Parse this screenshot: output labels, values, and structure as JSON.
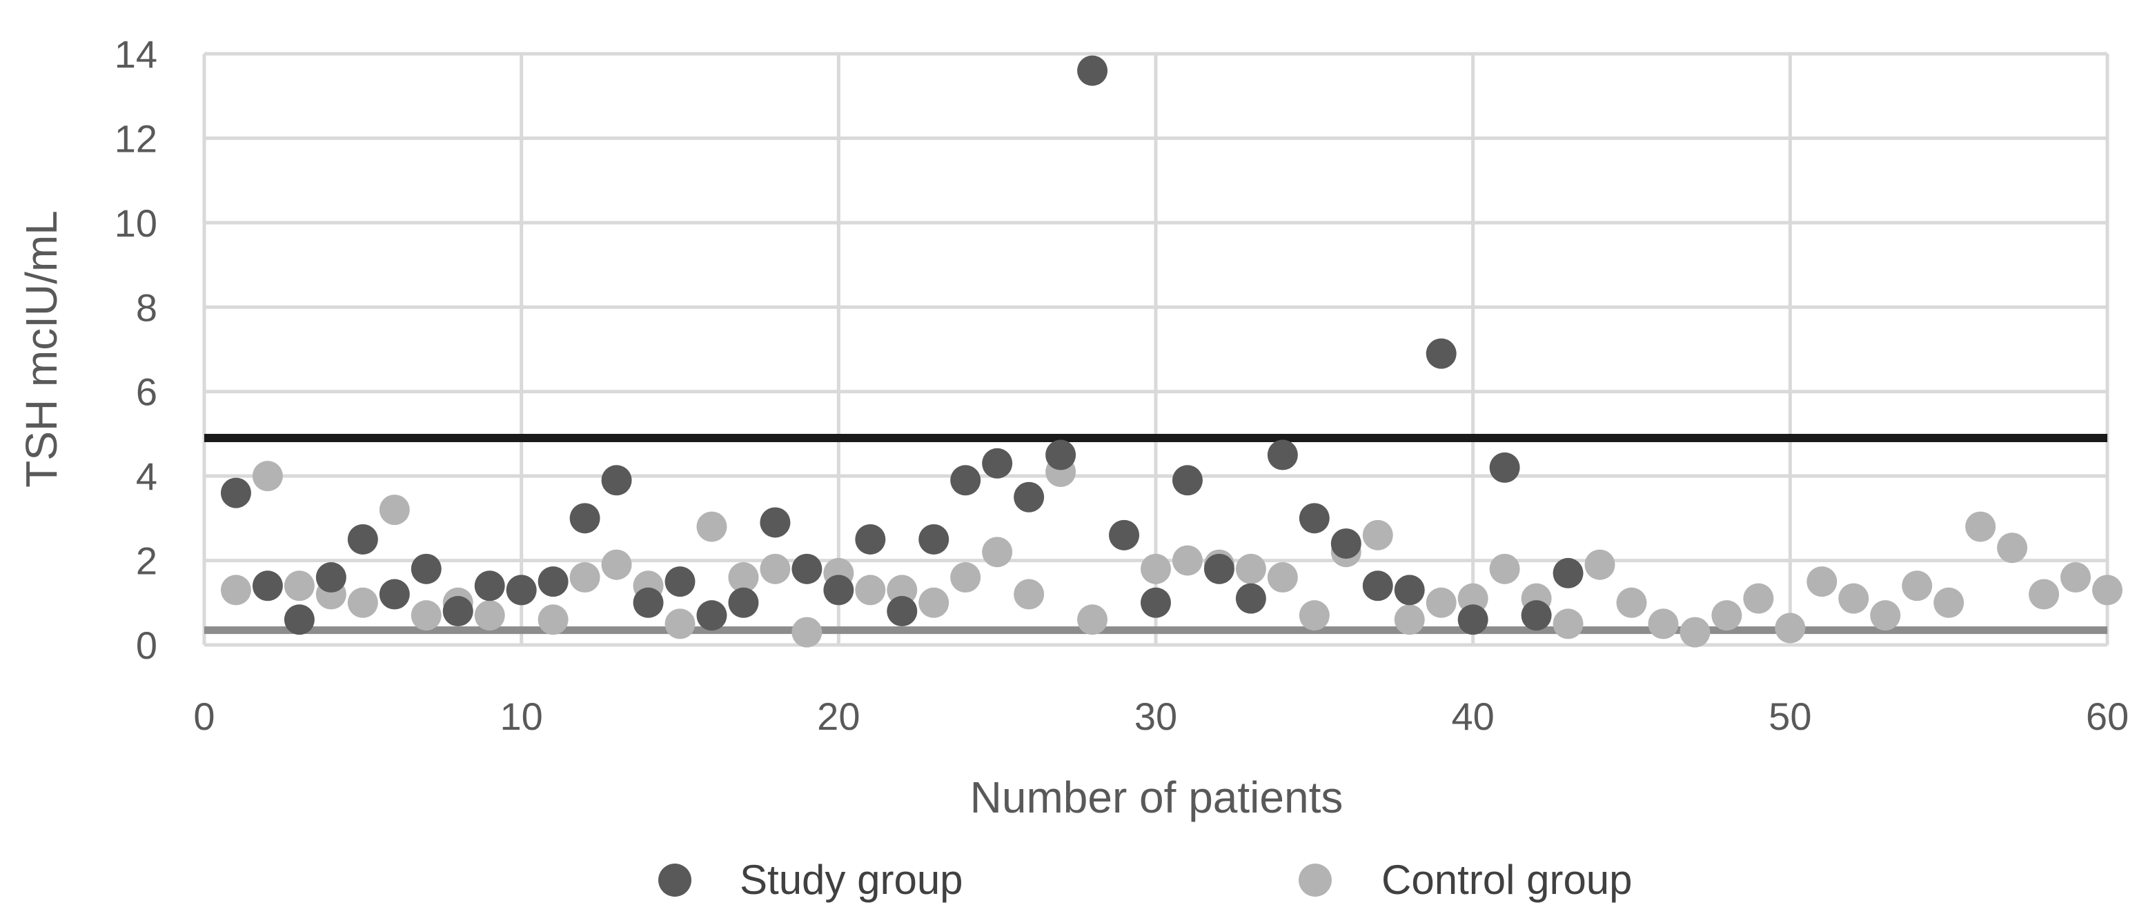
{
  "chart_data": {
    "type": "scatter",
    "title": "",
    "xlabel": "Number of patients",
    "ylabel": "TSH mcIU/mL",
    "xlim": [
      0,
      60
    ],
    "ylim": [
      0,
      14
    ],
    "x_ticks": [
      0,
      10,
      20,
      30,
      40,
      50,
      60
    ],
    "y_ticks": [
      0,
      2,
      4,
      6,
      8,
      10,
      12,
      14
    ],
    "grid": true,
    "legend_position": "bottom",
    "reference_lines": [
      {
        "name": "upper-limit",
        "y": 4.9,
        "color": "#1a1a1a"
      },
      {
        "name": "lower-limit",
        "y": 0.35,
        "color": "#8c8c8c"
      }
    ],
    "series": [
      {
        "name": "Study group",
        "color": "#595959",
        "x": [
          1,
          2,
          3,
          4,
          5,
          6,
          7,
          8,
          9,
          10,
          11,
          12,
          13,
          14,
          15,
          16,
          17,
          18,
          19,
          20,
          21,
          22,
          23,
          24,
          25,
          26,
          27,
          28,
          29,
          30,
          31,
          32,
          33,
          34,
          35,
          36,
          37,
          38,
          39,
          40,
          41,
          42,
          43
        ],
        "y": [
          3.6,
          1.4,
          0.6,
          1.6,
          2.5,
          1.2,
          1.8,
          0.8,
          1.4,
          1.3,
          1.5,
          3.0,
          3.9,
          1.0,
          1.5,
          0.7,
          1.0,
          2.9,
          1.8,
          1.3,
          2.5,
          0.8,
          2.5,
          3.9,
          4.3,
          3.5,
          4.5,
          13.6,
          2.6,
          1.0,
          3.9,
          1.8,
          1.1,
          4.5,
          3.0,
          2.4,
          1.4,
          1.3,
          6.9,
          0.6,
          4.2,
          0.7,
          1.7
        ]
      },
      {
        "name": "Control group",
        "color": "#b3b3b3",
        "x": [
          1,
          2,
          3,
          4,
          5,
          6,
          7,
          8,
          9,
          10,
          11,
          12,
          13,
          14,
          15,
          16,
          17,
          18,
          19,
          20,
          21,
          22,
          23,
          24,
          25,
          26,
          27,
          28,
          29,
          30,
          31,
          32,
          33,
          34,
          35,
          36,
          37,
          38,
          39,
          40,
          41,
          42,
          43,
          44,
          45,
          46,
          47,
          48,
          49,
          50,
          51,
          52,
          53,
          54,
          55,
          56,
          57,
          58,
          59,
          60
        ],
        "y": [
          1.3,
          4.0,
          1.4,
          1.2,
          1.0,
          3.2,
          0.7,
          1.0,
          0.7,
          1.3,
          0.6,
          1.6,
          1.9,
          1.4,
          0.5,
          2.8,
          1.6,
          1.8,
          0.3,
          1.7,
          1.3,
          1.3,
          1.0,
          1.6,
          2.2,
          1.2,
          4.1,
          0.6,
          2.6,
          1.8,
          2.0,
          1.9,
          1.8,
          1.6,
          0.7,
          2.2,
          2.6,
          0.6,
          1.0,
          1.1,
          1.8,
          1.1,
          0.5,
          1.9,
          1.0,
          0.5,
          0.3,
          0.7,
          1.1,
          0.4,
          1.5,
          1.1,
          0.7,
          1.4,
          1.0,
          2.8,
          2.3,
          1.2,
          1.6,
          1.3
        ]
      }
    ]
  }
}
